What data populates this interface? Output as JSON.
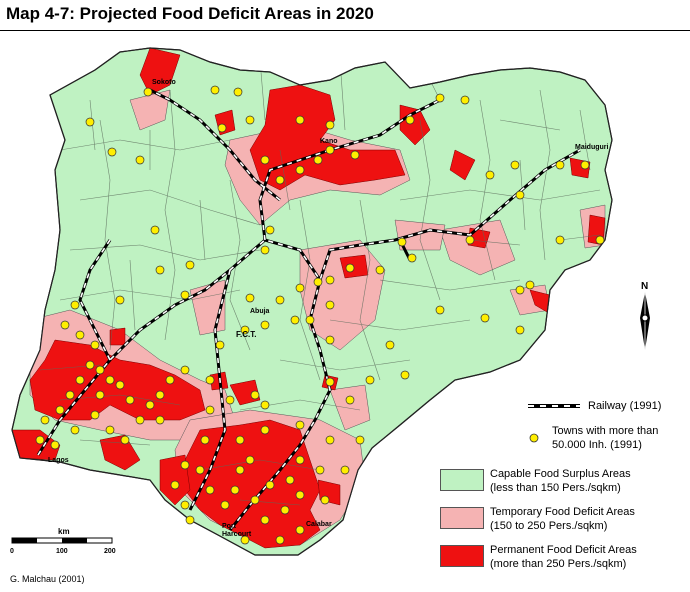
{
  "title": "Map 4-7: Projected Food Deficit Areas in 2020",
  "colors": {
    "surplus": "#bff2c2",
    "temporary": "#f5b3b3",
    "permanent": "#ee1111",
    "town": "#ffee00",
    "outline": "#555555"
  },
  "cities": {
    "sokoto": "Sokoto",
    "kano": "Kano",
    "maiduguri": "Maiduguri",
    "abuja": "Abuja",
    "fct": "F.C.T.",
    "lagos": "Lagos",
    "port_harcourt_1": "Port",
    "port_harcourt_2": "Harcourt",
    "calabar": "Calabar"
  },
  "north_arrow": {
    "label": "N"
  },
  "scale_bar": {
    "unit": "km",
    "ticks": [
      "0",
      "100",
      "200"
    ]
  },
  "legend": {
    "railway": "Railway (1991)",
    "towns_line1": "Towns with more than",
    "towns_line2": "50.000 Inh. (1991)",
    "surplus_line1": "Capable Food Surplus Areas",
    "surplus_line2": "(less than 150 Pers./sqkm)",
    "temporary_line1": "Temporary Food Deficit Areas",
    "temporary_line2": "(150 to 250 Pers./sqkm)",
    "permanent_line1": "Permanent Food Deficit Areas",
    "permanent_line2": "(more than 250 Pers./sqkm)"
  },
  "credit": "G. Malchau (2001)"
}
